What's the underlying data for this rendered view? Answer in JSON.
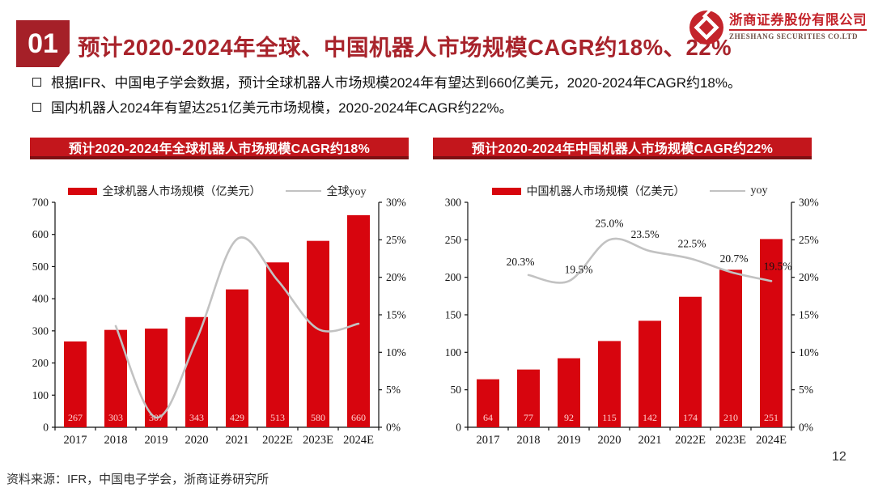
{
  "header": {
    "section_number": "01",
    "title": "预计2020-2024年全球、中国机器人市场规模CAGR约18%、22%",
    "logo": {
      "cn": "浙商证券股份有限公司",
      "en": "ZHESHANG SECURITIES CO.LTD"
    }
  },
  "bullets": [
    "根据IFR、中国电子学会数据，预计全球机器人市场规模2024年有望达到660亿美元，2020-2024年CAGR约18%。",
    "国内机器人2024年有望达251亿美元市场规模，2020-2024年CAGR约22%。"
  ],
  "colors": {
    "bar_red": "#D7050E",
    "banner_red": "#C3161C",
    "banner_shadow": "#7E1013",
    "title_red": "#A8232B",
    "logo_red": "#C4242B",
    "line_gray": "#C2C2C2",
    "bar_label_pink": "#FFD0D0",
    "axis_black": "#111111"
  },
  "chart_data": [
    {
      "type": "bar+line",
      "title": "预计2020-2024年全球机器人市场规模CAGR约18%",
      "categories": [
        "2017",
        "2018",
        "2019",
        "2020",
        "2021",
        "2022E",
        "2023E",
        "2024E"
      ],
      "series": [
        {
          "name": "全球机器人市场规模（亿美元）",
          "type": "bar",
          "axis": "left",
          "values": [
            267,
            303,
            307,
            343,
            429,
            513,
            580,
            660
          ]
        },
        {
          "name": "全球yoy",
          "type": "line",
          "axis": "right",
          "start_index": 1,
          "values": [
            13.5,
            1.3,
            11.7,
            25.1,
            19.6,
            13.1,
            13.8
          ],
          "labels": null
        }
      ],
      "left_axis": {
        "min": 0,
        "max": 700,
        "step": 100,
        "suffix": ""
      },
      "right_axis": {
        "min": 0,
        "max": 30,
        "step": 5,
        "suffix": "%"
      },
      "legend_position": "top",
      "grid": false
    },
    {
      "type": "bar+line",
      "title": "预计2020-2024年中国机器人市场规模CAGR约22%",
      "categories": [
        "2017",
        "2018",
        "2019",
        "2020",
        "2021",
        "2022E",
        "2023E",
        "2024E"
      ],
      "series": [
        {
          "name": "中国机器人市场规模（亿美元）",
          "type": "bar",
          "axis": "left",
          "values": [
            64,
            77,
            92,
            115,
            142,
            174,
            210,
            251
          ]
        },
        {
          "name": "yoy",
          "type": "line",
          "axis": "right",
          "start_index": 1,
          "values": [
            20.3,
            19.5,
            25.0,
            23.5,
            22.5,
            20.7,
            19.5
          ],
          "labels": [
            "20.3%",
            "19.5%",
            "25.0%",
            "23.5%",
            "22.5%",
            "20.7%",
            "19.5%"
          ],
          "label_offsets": [
            [
              -10,
              -12
            ],
            [
              12,
              -10
            ],
            [
              0,
              -16
            ],
            [
              -6,
              -16
            ],
            [
              2,
              -14
            ],
            [
              4,
              -12
            ],
            [
              8,
              -14
            ]
          ]
        }
      ],
      "left_axis": {
        "min": 0,
        "max": 300,
        "step": 50,
        "suffix": ""
      },
      "right_axis": {
        "min": 0,
        "max": 30,
        "step": 5,
        "suffix": "%"
      },
      "legend_position": "top",
      "grid": false
    }
  ],
  "footer": {
    "source": "资料来源：IFR，中国电子学会，浙商证券研究所",
    "page_number": "12"
  }
}
